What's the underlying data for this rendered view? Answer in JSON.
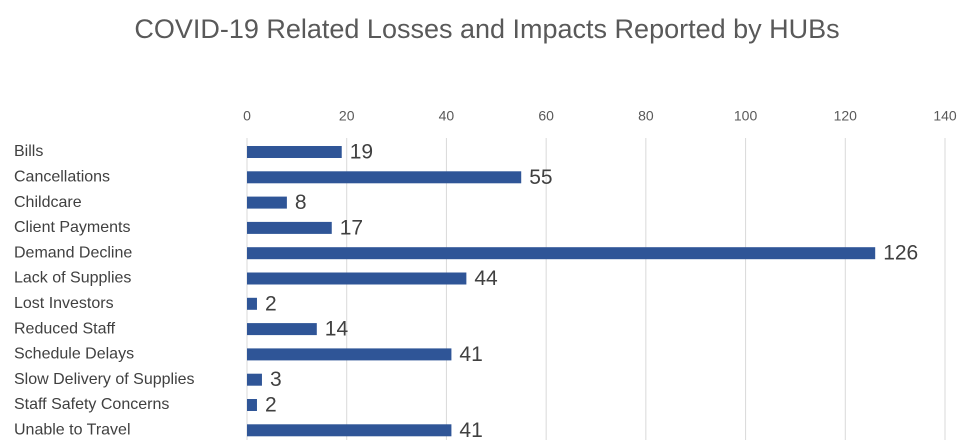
{
  "chart_data": {
    "type": "bar",
    "orientation": "horizontal",
    "title": "COVID-19 Related Losses and Impacts Reported by HUBs",
    "categories": [
      "Bills",
      "Cancellations",
      "Childcare",
      "Client Payments",
      "Demand Decline",
      "Lack of Supplies",
      "Lost Investors",
      "Reduced Staff",
      "Schedule Delays",
      "Slow Delivery of Supplies",
      "Staff Safety Concerns",
      "Unable to Travel"
    ],
    "values": [
      19,
      55,
      8,
      17,
      126,
      44,
      2,
      14,
      41,
      3,
      2,
      41
    ],
    "color": "#2f5597",
    "xlim": [
      0,
      140
    ],
    "xticks": [
      0,
      20,
      40,
      60,
      80,
      100,
      120,
      140
    ],
    "grid": true
  }
}
